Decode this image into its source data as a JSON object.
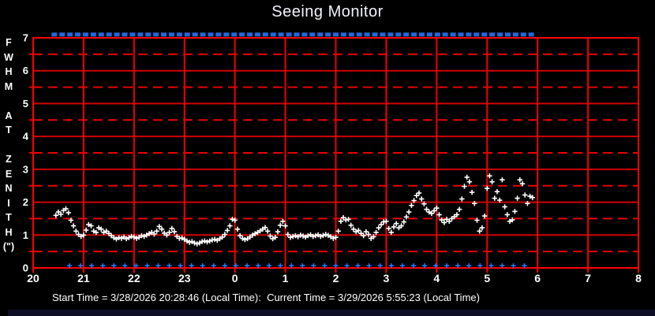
{
  "window": {
    "background": "#000000",
    "bottom_strip_color": "#0d0d26"
  },
  "chart": {
    "title": "Seeing Monitor",
    "y_axis_letters": [
      "F",
      "W",
      "H",
      "M",
      "",
      "A",
      "T",
      "",
      "Z",
      "E",
      "N",
      "I",
      "T",
      "H",
      "(\")"
    ],
    "status_line": "Start Time = 3/28/2026 20:28:46 (Local Time):  Current Time = 3/29/2026 5:55:23 (Local Time)"
  },
  "chart_data": {
    "type": "scatter",
    "title": "Seeing Monitor",
    "ylabel": "FWHM AT ZENITH (\")",
    "ylim": [
      0,
      7
    ],
    "y_ticks": [
      0,
      1,
      2,
      3,
      4,
      5,
      6,
      7
    ],
    "x_hours_range": [
      20,
      32
    ],
    "x_tick_hours": [
      20,
      21,
      22,
      23,
      24,
      25,
      26,
      27,
      28,
      29,
      30,
      31,
      32
    ],
    "x_tick_labels": [
      "20",
      "21",
      "22",
      "23",
      "0",
      "1",
      "2",
      "3",
      "4",
      "5",
      "6",
      "7",
      "8"
    ],
    "grid": {
      "solid_step": 1,
      "dashed_step": 0.5,
      "solid_color": "#cf0000",
      "dashed_color": "#e80000",
      "vertical_color": "#ee0000",
      "border_color": "#ff0000"
    },
    "start_time": "3/28/2026 20:28:46 (Local Time)",
    "current_time": "3/29/2026 5:55:23 (Local Time)",
    "series": [
      {
        "name": "fwhm_at_zenith",
        "marker": "plus",
        "color": "#ffffff",
        "points": [
          [
            20.45,
            1.6
          ],
          [
            20.5,
            1.7
          ],
          [
            20.55,
            1.63
          ],
          [
            20.6,
            1.75
          ],
          [
            20.65,
            1.8
          ],
          [
            20.7,
            1.68
          ],
          [
            20.75,
            1.45
          ],
          [
            20.8,
            1.28
          ],
          [
            20.85,
            1.12
          ],
          [
            20.9,
            1.02
          ],
          [
            20.95,
            0.96
          ],
          [
            21.0,
            1.0
          ],
          [
            21.05,
            1.15
          ],
          [
            21.1,
            1.32
          ],
          [
            21.15,
            1.28
          ],
          [
            21.2,
            1.12
          ],
          [
            21.25,
            1.08
          ],
          [
            21.3,
            1.22
          ],
          [
            21.35,
            1.18
          ],
          [
            21.4,
            1.08
          ],
          [
            21.45,
            1.12
          ],
          [
            21.5,
            1.05
          ],
          [
            21.55,
            0.98
          ],
          [
            21.6,
            0.92
          ],
          [
            21.65,
            0.88
          ],
          [
            21.7,
            0.92
          ],
          [
            21.75,
            0.9
          ],
          [
            21.8,
            0.94
          ],
          [
            21.85,
            0.89
          ],
          [
            21.9,
            0.92
          ],
          [
            21.95,
            0.96
          ],
          [
            22.0,
            0.94
          ],
          [
            22.05,
            0.9
          ],
          [
            22.1,
            0.93
          ],
          [
            22.15,
            0.98
          ],
          [
            22.2,
            0.96
          ],
          [
            22.25,
            1.0
          ],
          [
            22.3,
            1.04
          ],
          [
            22.35,
            1.08
          ],
          [
            22.4,
            1.03
          ],
          [
            22.45,
            1.12
          ],
          [
            22.5,
            1.26
          ],
          [
            22.55,
            1.18
          ],
          [
            22.6,
            1.06
          ],
          [
            22.65,
            1.0
          ],
          [
            22.7,
            1.08
          ],
          [
            22.75,
            1.2
          ],
          [
            22.8,
            1.1
          ],
          [
            22.85,
            0.96
          ],
          [
            22.9,
            0.9
          ],
          [
            22.95,
            0.91
          ],
          [
            23.0,
            0.87
          ],
          [
            23.05,
            0.82
          ],
          [
            23.1,
            0.78
          ],
          [
            23.15,
            0.8
          ],
          [
            23.2,
            0.76
          ],
          [
            23.25,
            0.73
          ],
          [
            23.3,
            0.76
          ],
          [
            23.35,
            0.8
          ],
          [
            23.4,
            0.82
          ],
          [
            23.45,
            0.79
          ],
          [
            23.5,
            0.82
          ],
          [
            23.55,
            0.85
          ],
          [
            23.6,
            0.87
          ],
          [
            23.65,
            0.84
          ],
          [
            23.7,
            0.89
          ],
          [
            23.75,
            0.94
          ],
          [
            23.8,
            1.02
          ],
          [
            23.85,
            1.14
          ],
          [
            23.9,
            1.28
          ],
          [
            23.95,
            1.48
          ],
          [
            24.0,
            1.45
          ],
          [
            24.05,
            1.18
          ],
          [
            24.1,
            0.98
          ],
          [
            24.15,
            0.9
          ],
          [
            24.2,
            0.86
          ],
          [
            24.25,
            0.89
          ],
          [
            24.3,
            0.94
          ],
          [
            24.35,
            1.0
          ],
          [
            24.4,
            1.04
          ],
          [
            24.45,
            1.08
          ],
          [
            24.5,
            1.13
          ],
          [
            24.55,
            1.18
          ],
          [
            24.6,
            1.23
          ],
          [
            24.65,
            1.12
          ],
          [
            24.7,
            0.97
          ],
          [
            24.75,
            0.89
          ],
          [
            24.8,
            0.93
          ],
          [
            24.85,
            1.1
          ],
          [
            24.9,
            1.3
          ],
          [
            24.95,
            1.42
          ],
          [
            25.0,
            1.28
          ],
          [
            25.05,
            1.02
          ],
          [
            25.1,
            0.93
          ],
          [
            25.15,
            0.96
          ],
          [
            25.2,
            0.98
          ],
          [
            25.25,
            0.95
          ],
          [
            25.3,
            1.0
          ],
          [
            25.35,
            0.97
          ],
          [
            25.4,
            0.94
          ],
          [
            25.45,
            0.98
          ],
          [
            25.5,
            1.01
          ],
          [
            25.55,
            0.96
          ],
          [
            25.6,
            0.98
          ],
          [
            25.65,
            1.01
          ],
          [
            25.7,
            0.96
          ],
          [
            25.75,
            0.99
          ],
          [
            25.8,
            1.02
          ],
          [
            25.85,
            0.99
          ],
          [
            25.9,
            0.95
          ],
          [
            25.95,
            0.9
          ],
          [
            26.0,
            0.93
          ],
          [
            26.05,
            1.12
          ],
          [
            26.1,
            1.42
          ],
          [
            26.15,
            1.53
          ],
          [
            26.2,
            1.46
          ],
          [
            26.25,
            1.48
          ],
          [
            26.3,
            1.3
          ],
          [
            26.35,
            1.18
          ],
          [
            26.4,
            1.1
          ],
          [
            26.45,
            1.14
          ],
          [
            26.5,
            1.05
          ],
          [
            26.55,
            0.98
          ],
          [
            26.6,
            1.1
          ],
          [
            26.65,
            1.02
          ],
          [
            26.7,
            0.9
          ],
          [
            26.75,
            0.95
          ],
          [
            26.8,
            1.08
          ],
          [
            26.85,
            1.22
          ],
          [
            26.9,
            1.32
          ],
          [
            26.95,
            1.4
          ],
          [
            27.0,
            1.42
          ],
          [
            27.05,
            1.2
          ],
          [
            27.1,
            1.08
          ],
          [
            27.15,
            1.25
          ],
          [
            27.2,
            1.35
          ],
          [
            27.25,
            1.22
          ],
          [
            27.3,
            1.28
          ],
          [
            27.35,
            1.4
          ],
          [
            27.4,
            1.55
          ],
          [
            27.45,
            1.7
          ],
          [
            27.5,
            1.9
          ],
          [
            27.55,
            2.05
          ],
          [
            27.6,
            2.2
          ],
          [
            27.65,
            2.28
          ],
          [
            27.7,
            2.1
          ],
          [
            27.75,
            1.95
          ],
          [
            27.8,
            1.78
          ],
          [
            27.85,
            1.7
          ],
          [
            27.9,
            1.66
          ],
          [
            27.95,
            1.74
          ],
          [
            28.0,
            1.82
          ],
          [
            28.05,
            1.62
          ],
          [
            28.1,
            1.46
          ],
          [
            28.15,
            1.38
          ],
          [
            28.2,
            1.48
          ],
          [
            28.25,
            1.42
          ],
          [
            28.3,
            1.5
          ],
          [
            28.35,
            1.56
          ],
          [
            28.4,
            1.62
          ],
          [
            28.45,
            1.78
          ],
          [
            28.5,
            2.1
          ],
          [
            28.55,
            2.48
          ],
          [
            28.6,
            2.76
          ],
          [
            28.65,
            2.62
          ],
          [
            28.7,
            2.3
          ],
          [
            28.75,
            1.96
          ],
          [
            28.8,
            1.45
          ],
          [
            28.85,
            1.12
          ],
          [
            28.9,
            1.22
          ],
          [
            28.95,
            1.58
          ],
          [
            29.0,
            2.42
          ],
          [
            29.05,
            2.8
          ],
          [
            29.1,
            2.62
          ],
          [
            29.15,
            2.12
          ],
          [
            29.2,
            2.32
          ],
          [
            29.25,
            2.06
          ],
          [
            29.3,
            2.68
          ],
          [
            29.35,
            1.86
          ],
          [
            29.4,
            1.62
          ],
          [
            29.45,
            1.42
          ],
          [
            29.5,
            1.46
          ],
          [
            29.55,
            1.72
          ],
          [
            29.6,
            2.12
          ],
          [
            29.65,
            2.68
          ],
          [
            29.7,
            2.56
          ],
          [
            29.75,
            2.22
          ],
          [
            29.8,
            1.96
          ],
          [
            29.85,
            2.18
          ],
          [
            29.9,
            2.14
          ]
        ]
      },
      {
        "name": "top_status_markers",
        "marker": "square",
        "color": "#2268dd",
        "value": 7.1,
        "t_start": 20.42,
        "t_end": 29.9,
        "t_step": 0.155
      },
      {
        "name": "bottom_status_markers",
        "marker": "plus",
        "color": "#2277ff",
        "value": 0.07,
        "t_start": 20.72,
        "t_end": 29.9,
        "t_step": 0.22
      }
    ]
  }
}
